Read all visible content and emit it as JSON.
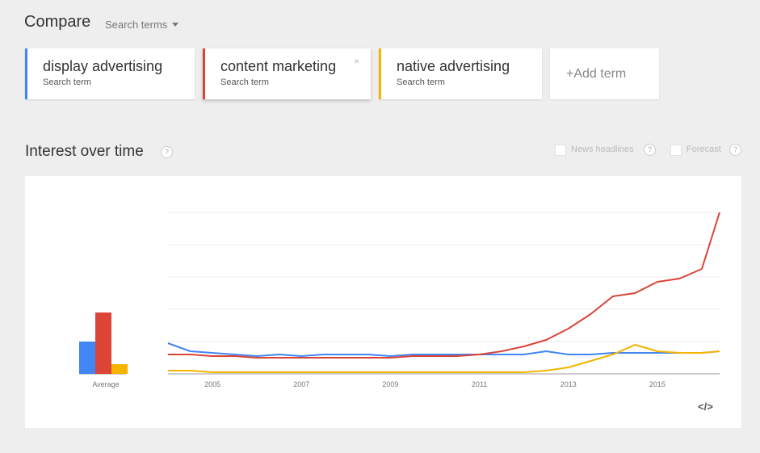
{
  "compare": {
    "title": "Compare",
    "dropdown_label": "Search terms"
  },
  "terms": [
    {
      "name": "display advertising",
      "sub": "Search term",
      "color": "#4285f4"
    },
    {
      "name": "content marketing",
      "sub": "Search term",
      "color": "#db4437",
      "close": "×"
    },
    {
      "name": "native advertising",
      "sub": "Search term",
      "color": "#f4b400"
    }
  ],
  "add_term": "+Add term",
  "interest": {
    "title": "Interest over time",
    "help": "?",
    "news_label": "News headlines",
    "forecast_label": "Forecast"
  },
  "embed_label": "</>",
  "chart_data": {
    "type": "line",
    "x_ticks": [
      "2005",
      "2007",
      "2009",
      "2011",
      "2013",
      "2015"
    ],
    "average": {
      "label": "Average",
      "values": [
        20,
        38,
        6
      ]
    },
    "ylim": [
      0,
      100
    ],
    "grid": true,
    "series": [
      {
        "name": "display advertising",
        "color": "#4285f4",
        "points": [
          [
            2004.0,
            19
          ],
          [
            2004.5,
            14
          ],
          [
            2005.0,
            13
          ],
          [
            2005.5,
            12
          ],
          [
            2006.0,
            11
          ],
          [
            2006.5,
            12
          ],
          [
            2007.0,
            11
          ],
          [
            2007.5,
            12
          ],
          [
            2008.0,
            12
          ],
          [
            2008.5,
            12
          ],
          [
            2009.0,
            11
          ],
          [
            2009.5,
            12
          ],
          [
            2010.0,
            12
          ],
          [
            2010.5,
            12
          ],
          [
            2011.0,
            12
          ],
          [
            2011.5,
            12
          ],
          [
            2012.0,
            12
          ],
          [
            2012.5,
            14
          ],
          [
            2013.0,
            12
          ],
          [
            2013.5,
            12
          ],
          [
            2014.0,
            13
          ],
          [
            2014.5,
            13
          ],
          [
            2015.0,
            13
          ],
          [
            2015.5,
            13
          ],
          [
            2016.0,
            13
          ],
          [
            2016.4,
            14
          ]
        ]
      },
      {
        "name": "content marketing",
        "color": "#db4437",
        "points": [
          [
            2004.0,
            12
          ],
          [
            2004.5,
            12
          ],
          [
            2005.0,
            11
          ],
          [
            2005.5,
            11
          ],
          [
            2006.0,
            10
          ],
          [
            2006.5,
            10
          ],
          [
            2007.0,
            10
          ],
          [
            2007.5,
            10
          ],
          [
            2008.0,
            10
          ],
          [
            2008.5,
            10
          ],
          [
            2009.0,
            10
          ],
          [
            2009.5,
            11
          ],
          [
            2010.0,
            11
          ],
          [
            2010.5,
            11
          ],
          [
            2011.0,
            12
          ],
          [
            2011.5,
            14
          ],
          [
            2012.0,
            17
          ],
          [
            2012.5,
            21
          ],
          [
            2013.0,
            28
          ],
          [
            2013.5,
            37
          ],
          [
            2014.0,
            48
          ],
          [
            2014.5,
            50
          ],
          [
            2015.0,
            57
          ],
          [
            2015.5,
            59
          ],
          [
            2016.0,
            65
          ],
          [
            2016.4,
            100
          ]
        ]
      },
      {
        "name": "native advertising",
        "color": "#f4b400",
        "points": [
          [
            2004.0,
            2
          ],
          [
            2004.5,
            2
          ],
          [
            2005.0,
            1
          ],
          [
            2005.5,
            1
          ],
          [
            2006.0,
            1
          ],
          [
            2006.5,
            1
          ],
          [
            2007.0,
            1
          ],
          [
            2007.5,
            1
          ],
          [
            2008.0,
            1
          ],
          [
            2008.5,
            1
          ],
          [
            2009.0,
            1
          ],
          [
            2009.5,
            1
          ],
          [
            2010.0,
            1
          ],
          [
            2010.5,
            1
          ],
          [
            2011.0,
            1
          ],
          [
            2011.5,
            1
          ],
          [
            2012.0,
            1
          ],
          [
            2012.5,
            2
          ],
          [
            2013.0,
            4
          ],
          [
            2013.5,
            8
          ],
          [
            2014.0,
            12
          ],
          [
            2014.5,
            18
          ],
          [
            2015.0,
            14
          ],
          [
            2015.5,
            13
          ],
          [
            2016.0,
            13
          ],
          [
            2016.4,
            14
          ]
        ]
      }
    ]
  }
}
